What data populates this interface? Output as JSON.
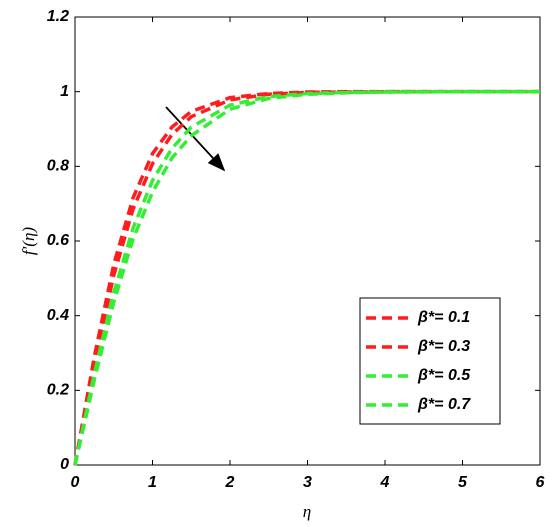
{
  "chart_data": {
    "type": "line",
    "x_label": "η",
    "y_label": "f'(η)",
    "x": [
      0,
      0.25,
      0.5,
      0.75,
      1,
      1.25,
      1.5,
      2,
      2.5,
      3,
      3.5,
      4,
      5,
      6
    ],
    "series": [
      {
        "name": "β*= 0.1",
        "color": "#ff1c1c",
        "values": [
          0,
          0.291,
          0.537,
          0.716,
          0.834,
          0.905,
          0.947,
          0.984,
          0.995,
          0.999,
          1,
          1,
          1,
          1
        ]
      },
      {
        "name": "β*= 0.3",
        "color": "#ff1c1c",
        "values": [
          0,
          0.273,
          0.508,
          0.686,
          0.807,
          0.885,
          0.933,
          0.978,
          0.993,
          0.998,
          0.999,
          1,
          1,
          1
        ]
      },
      {
        "name": "β*= 0.5",
        "color": "#33ee33",
        "values": [
          0,
          0.245,
          0.462,
          0.635,
          0.762,
          0.848,
          0.905,
          0.964,
          0.987,
          0.995,
          0.998,
          0.999,
          1,
          1
        ]
      },
      {
        "name": "β*= 0.7",
        "color": "#33ee33",
        "values": [
          0,
          0.229,
          0.436,
          0.606,
          0.731,
          0.822,
          0.882,
          0.953,
          0.982,
          0.993,
          0.997,
          0.999,
          1,
          1
        ]
      }
    ],
    "xlim": [
      0,
      6
    ],
    "ylim": [
      0,
      1.2
    ],
    "xticks": [
      0,
      1,
      2,
      3,
      4,
      5,
      6
    ],
    "yticks": [
      0,
      0.2,
      0.4,
      0.6,
      0.8,
      1,
      1.2
    ],
    "legend": "lower right",
    "grid": false
  }
}
